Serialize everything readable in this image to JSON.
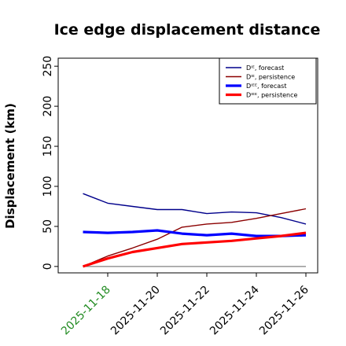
{
  "chart_data": {
    "type": "line",
    "title": "Ice edge displacement distance",
    "ylabel": "Displacement (km)",
    "xlabel": "",
    "ylim": [
      -8,
      260
    ],
    "yticks": [
      0,
      50,
      100,
      150,
      200,
      250
    ],
    "x_dates": [
      "2025-11-17",
      "2025-11-18",
      "2025-11-19",
      "2025-11-20",
      "2025-11-21",
      "2025-11-22",
      "2025-11-23",
      "2025-11-24",
      "2025-11-25",
      "2025-11-26"
    ],
    "xticks": [
      "2025-11-18",
      "2025-11-20",
      "2025-11-22",
      "2025-11-24",
      "2025-11-26"
    ],
    "highlight_tick": "2025-11-18",
    "highlight_color": "#228b22",
    "xlim": [
      "2025-11-16",
      "2025-11-26"
    ],
    "grid": false,
    "legend_position": "top-right",
    "baseline": {
      "y": 0,
      "color": "#808080"
    },
    "series": [
      {
        "name": "Dᴵᴱ, forecast",
        "color": "#00008b",
        "width": "thin",
        "values": [
          91,
          79,
          75,
          71,
          71,
          66,
          68,
          67,
          61,
          53
        ]
      },
      {
        "name": "Dᴵᴱ, persistence",
        "color": "#8b0000",
        "width": "thin",
        "values": [
          0,
          13,
          23,
          34,
          49,
          53,
          55,
          60,
          66,
          72
        ]
      },
      {
        "name": "Dᴵᴱᴱ, forecast",
        "color": "#0000ff",
        "width": "thick",
        "values": [
          43,
          42,
          43,
          45,
          41,
          39,
          41,
          38,
          38,
          39
        ]
      },
      {
        "name": "Dᴵᴱᴱ, persistence",
        "color": "#ff0000",
        "width": "thick",
        "values": [
          0,
          10,
          18,
          23,
          28,
          30,
          32,
          35,
          38,
          42
        ]
      }
    ]
  }
}
